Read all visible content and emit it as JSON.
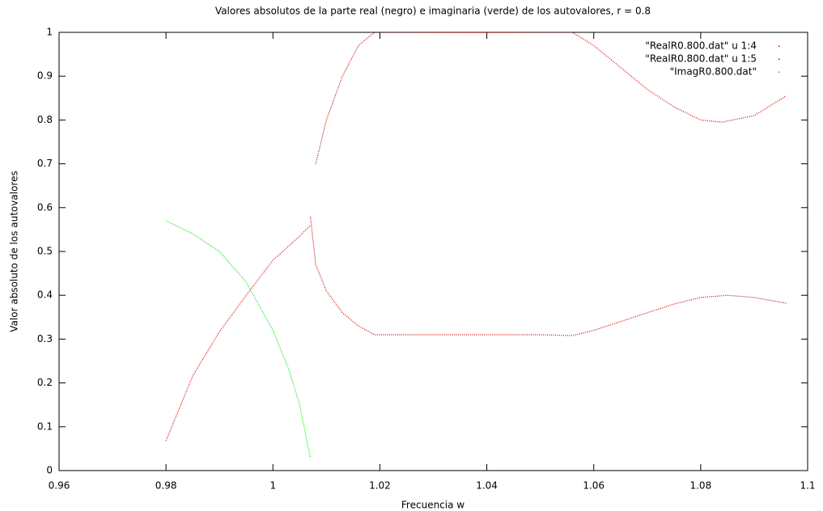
{
  "chart_data": {
    "type": "line",
    "title": "Valores absolutos de la parte real (negro) e imaginaria (verde) de los autovalores, r = 0.8",
    "x_label": "Frecuencia w",
    "y_label": "Valor absoluto de los autovalores",
    "xlim": [
      0.96,
      1.1
    ],
    "xticks": [
      0.96,
      0.98,
      1,
      1.02,
      1.04,
      1.06,
      1.08,
      1.1
    ],
    "ylim": [
      0,
      1
    ],
    "yticks": [
      0,
      0.1,
      0.2,
      0.3,
      0.4,
      0.5,
      0.6,
      0.7,
      0.8,
      0.9,
      1
    ],
    "legend": "top-right",
    "series": [
      {
        "name": "\"RealR0.800.dat\" u 1:4",
        "color": "#d00000",
        "x": [
          0.98,
          0.985,
          0.99,
          0.995,
          1.0,
          1.005,
          1.007,
          1.0072,
          1.008,
          1.01,
          1.013,
          1.016,
          1.019,
          1.03,
          1.04,
          1.05,
          1.056,
          1.06,
          1.065,
          1.07,
          1.075,
          1.08,
          1.084,
          1.09,
          1.096
        ],
        "values": [
          0.068,
          0.216,
          0.317,
          0.4,
          0.48,
          0.535,
          0.56,
          null,
          0.7,
          0.8,
          0.9,
          0.97,
          1.0,
          1.0,
          1.0,
          1.0,
          1.0,
          0.97,
          0.92,
          0.87,
          0.83,
          0.8,
          0.795,
          0.81,
          0.855
        ]
      },
      {
        "name": "\"RealR0.800.dat\" u 1:5",
        "color": "#d00000",
        "x": [
          1.007,
          1.008,
          1.01,
          1.013,
          1.016,
          1.019,
          1.03,
          1.04,
          1.05,
          1.056,
          1.06,
          1.065,
          1.07,
          1.075,
          1.08,
          1.085,
          1.09,
          1.096
        ],
        "values": [
          0.58,
          0.47,
          0.41,
          0.36,
          0.33,
          0.31,
          0.31,
          0.31,
          0.31,
          0.308,
          0.32,
          0.34,
          0.36,
          0.38,
          0.395,
          0.4,
          0.395,
          0.382
        ]
      },
      {
        "name": "\"ImagR0.800.dat\"",
        "color": "#00e000",
        "x": [
          0.98,
          0.985,
          0.99,
          0.995,
          1.0,
          1.003,
          1.005,
          1.007
        ],
        "values": [
          0.57,
          0.54,
          0.5,
          0.43,
          0.32,
          0.23,
          0.15,
          0.03
        ]
      }
    ]
  }
}
